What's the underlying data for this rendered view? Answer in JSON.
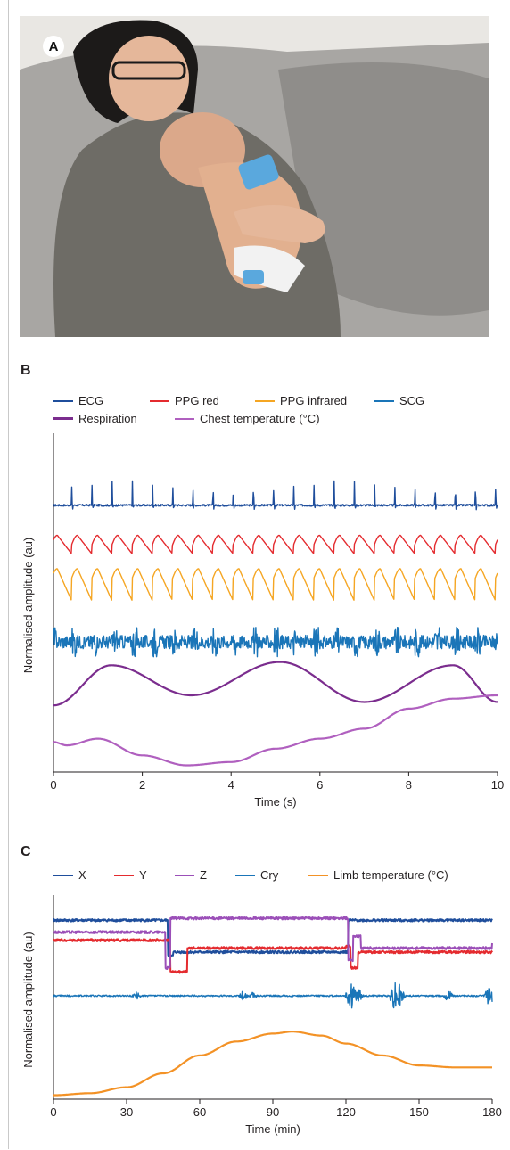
{
  "photo": {
    "panel_label": "A",
    "colors": {
      "wall": "#e9e7e3",
      "sofa": "#9c9a97",
      "shirt": "#6e6c66",
      "skin": "#e2b08f",
      "sensor": "#5aa8dd"
    }
  },
  "chart_data": [
    {
      "panel_label": "B",
      "type": "line",
      "xlabel": "Time (s)",
      "ylabel": "Normalised amplitude (au)",
      "xlim": [
        0,
        10
      ],
      "xticks": [
        "0",
        "2",
        "4",
        "6",
        "8",
        "10"
      ],
      "grid": false,
      "legend_position": "top",
      "series": [
        {
          "name": "ECG",
          "color": "#1f4e9c",
          "kind": "ecg",
          "beats_per_10s": 22,
          "baseline": 0.8
        },
        {
          "name": "PPG red",
          "color": "#e42b2f",
          "kind": "ppg",
          "beats_per_10s": 22,
          "baseline": 0.68
        },
        {
          "name": "PPG infrared",
          "color": "#f5a623",
          "kind": "ppg",
          "beats_per_10s": 22,
          "baseline": 0.56
        },
        {
          "name": "SCG",
          "color": "#1a75b8",
          "kind": "scg",
          "beats_per_10s": 22,
          "baseline": 0.39
        },
        {
          "name": "Respiration",
          "color": "#7b2d8e",
          "kind": "resp",
          "x": [
            0,
            1.3,
            3.1,
            5.1,
            7.0,
            9.0,
            10
          ],
          "y": [
            0.2,
            0.32,
            0.23,
            0.33,
            0.21,
            0.32,
            0.21
          ]
        },
        {
          "name": "Chest temperature (°C)",
          "color": "#b060bf",
          "kind": "curve",
          "x": [
            0,
            0.3,
            1.0,
            2.0,
            3.0,
            4.0,
            5.0,
            6.0,
            7.0,
            8.0,
            9.0,
            10
          ],
          "y": [
            0.09,
            0.08,
            0.1,
            0.05,
            0.02,
            0.03,
            0.07,
            0.1,
            0.13,
            0.19,
            0.22,
            0.23
          ]
        }
      ]
    },
    {
      "panel_label": "C",
      "type": "line",
      "xlabel": "Time (min)",
      "ylabel": "Normalised amplitude (au)",
      "xlim": [
        0,
        180
      ],
      "xticks": [
        "0",
        "30",
        "60",
        "90",
        "120",
        "150",
        "180"
      ],
      "grid": false,
      "legend_position": "top",
      "series": [
        {
          "name": "X",
          "color": "#1f4e9c",
          "kind": "step",
          "x": [
            0,
            46,
            47,
            49,
            120,
            121,
            130,
            180
          ],
          "y": [
            0.9,
            0.9,
            0.72,
            0.74,
            0.74,
            0.9,
            0.9,
            0.9
          ]
        },
        {
          "name": "Y",
          "color": "#e42b2f",
          "kind": "step",
          "x": [
            0,
            46,
            48,
            55,
            120,
            122,
            125,
            180
          ],
          "y": [
            0.8,
            0.8,
            0.64,
            0.76,
            0.77,
            0.66,
            0.74,
            0.74
          ]
        },
        {
          "name": "Z",
          "color": "#9b4fb8",
          "kind": "step",
          "x": [
            0,
            45,
            46,
            48,
            119,
            121,
            123,
            126,
            180
          ],
          "y": [
            0.84,
            0.84,
            0.66,
            0.91,
            0.91,
            0.7,
            0.82,
            0.76,
            0.79
          ]
        },
        {
          "name": "Cry",
          "color": "#1a75b8",
          "kind": "bursts",
          "baseline": 0.52,
          "bursts": [
            [
              34,
              0.02
            ],
            [
              78,
              0.03
            ],
            [
              82,
              0.02
            ],
            [
              122,
              0.1
            ],
            [
              125,
              0.04
            ],
            [
              140,
              0.09
            ],
            [
              142,
              0.07
            ],
            [
              162,
              0.03
            ],
            [
              179,
              0.06
            ]
          ]
        },
        {
          "name": "Limb temperature (°C)",
          "color": "#f39226",
          "kind": "curve",
          "x": [
            0,
            15,
            30,
            45,
            60,
            75,
            90,
            98,
            110,
            120,
            135,
            150,
            165,
            180
          ],
          "y": [
            0.02,
            0.03,
            0.06,
            0.13,
            0.22,
            0.29,
            0.33,
            0.34,
            0.32,
            0.28,
            0.22,
            0.17,
            0.16,
            0.16
          ]
        }
      ]
    }
  ]
}
